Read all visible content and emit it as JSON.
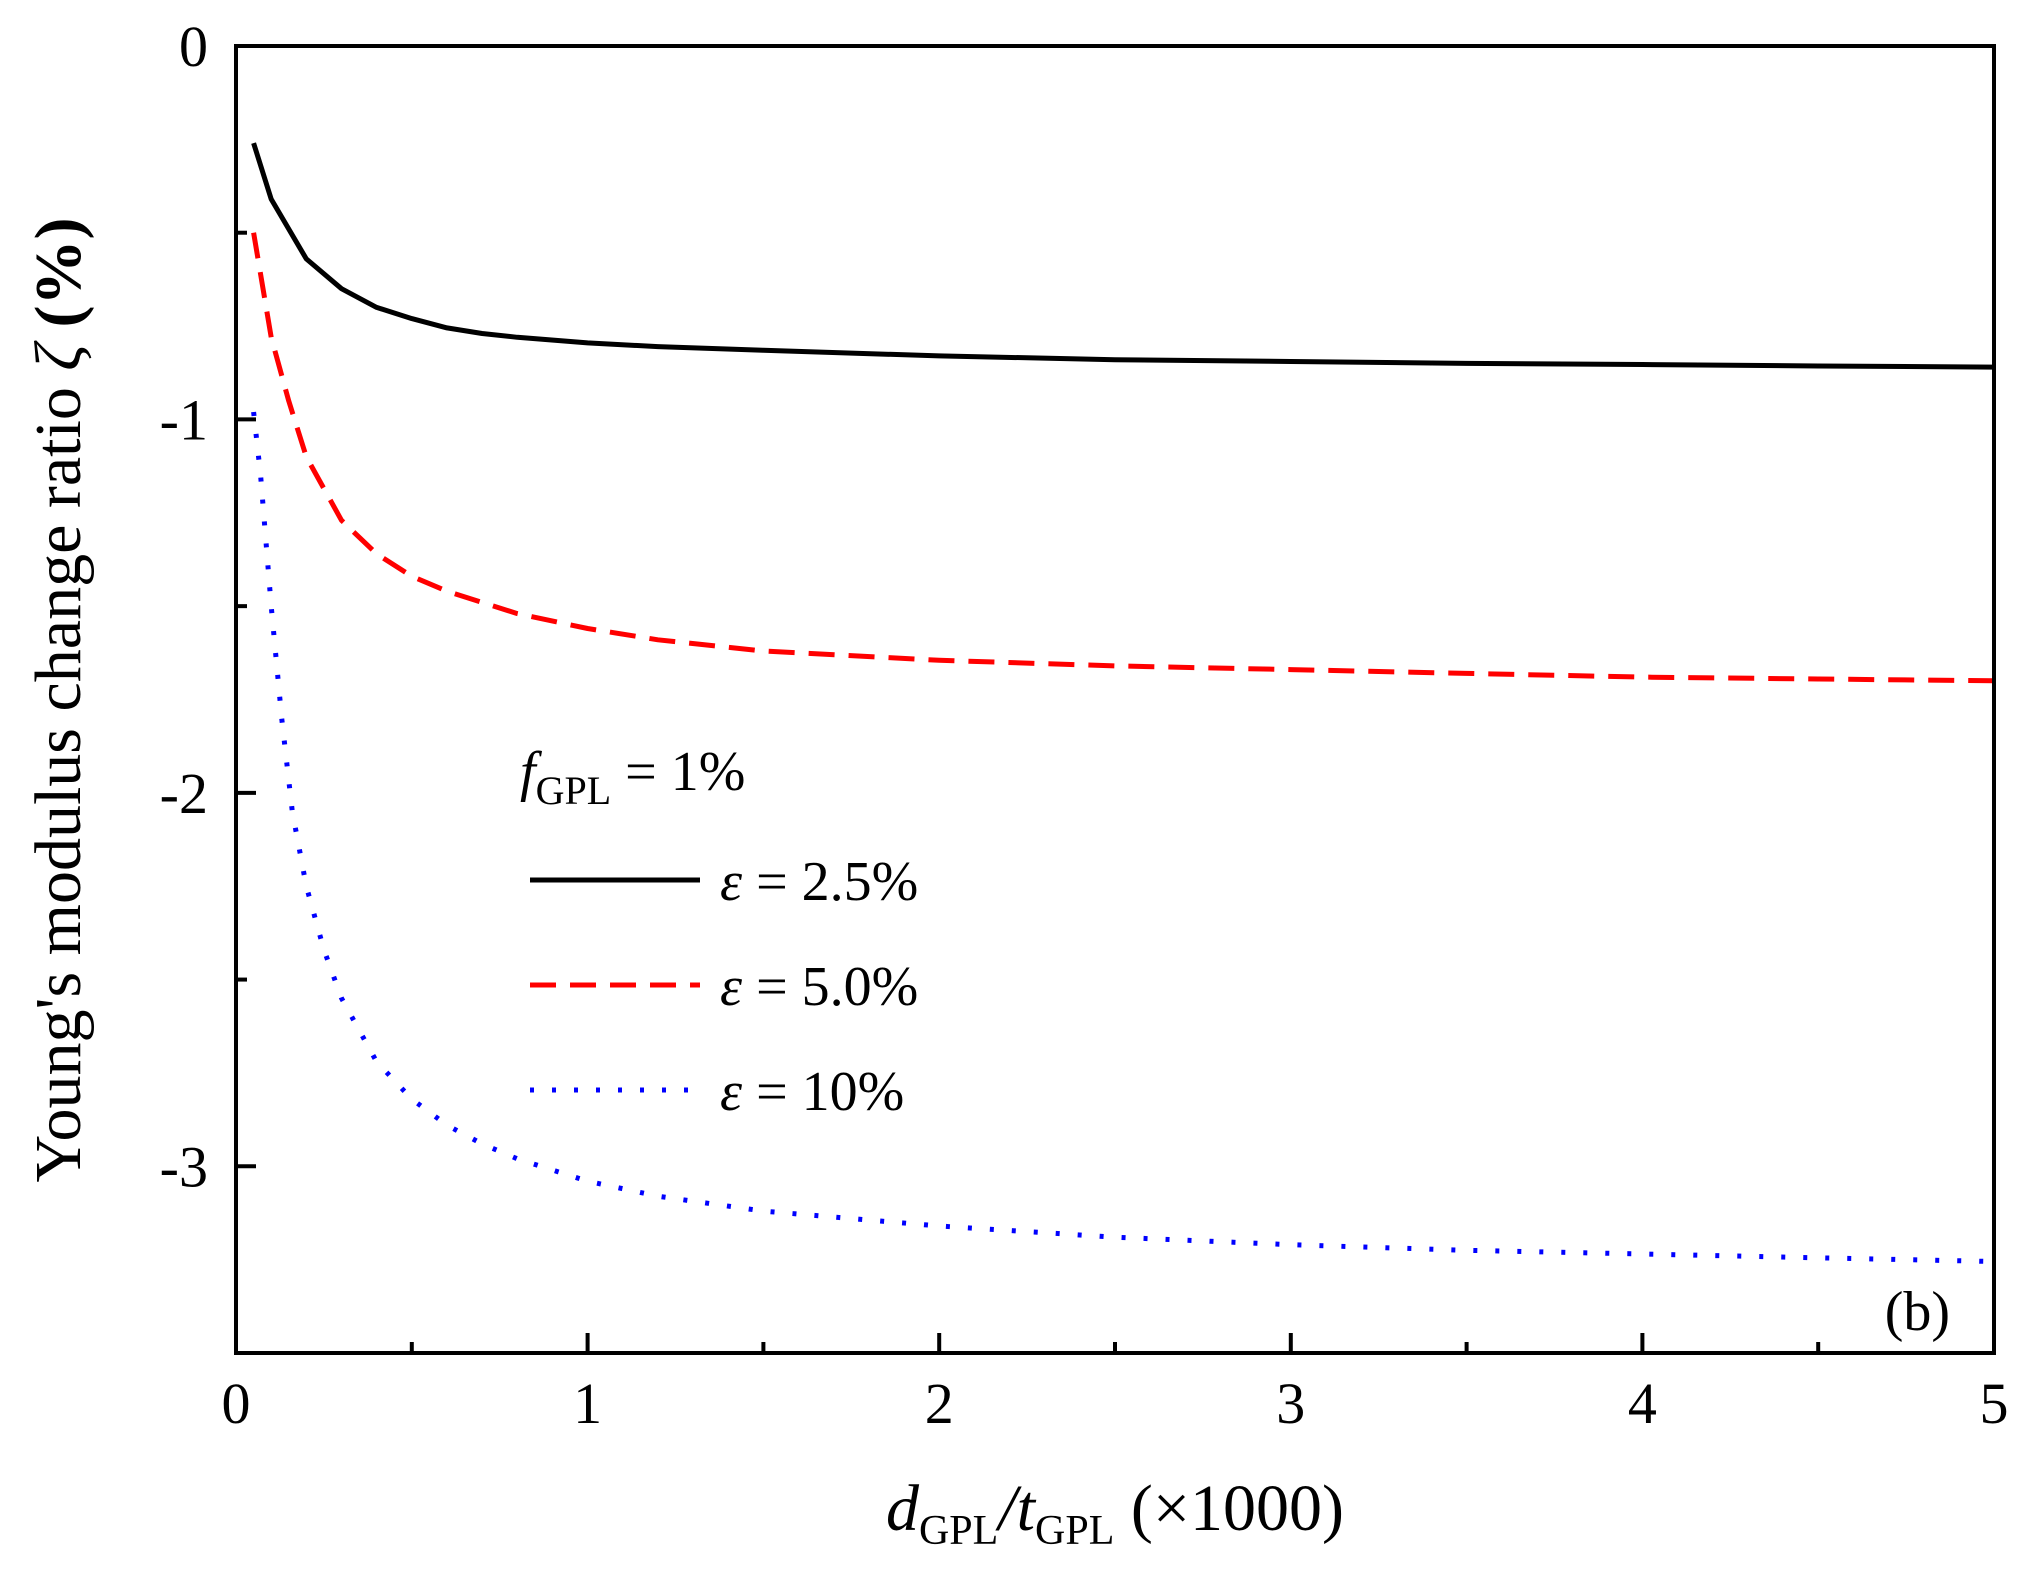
{
  "chart_data": {
    "type": "line",
    "title": "",
    "panel_label": "(b)",
    "xlabel": {
      "var1": "d",
      "sub1": "GPL",
      "slash": "/",
      "var2": "t",
      "sub2": "GPL",
      "suffix": "(×1000)"
    },
    "ylabel": {
      "prefix": "Young's modulus change ratio",
      "symbol": "ζ",
      "suffix": "(%)"
    },
    "xlim": [
      0,
      5
    ],
    "ylim": [
      -3.5,
      0
    ],
    "xticks": [
      {
        "value": 0,
        "label": "0"
      },
      {
        "value": 1,
        "label": "1"
      },
      {
        "value": 2,
        "label": "2"
      },
      {
        "value": 3,
        "label": "3"
      },
      {
        "value": 4,
        "label": "4"
      },
      {
        "value": 5,
        "label": "5"
      }
    ],
    "xminor": [
      0.5,
      1.5,
      2.5,
      3.5,
      4.5
    ],
    "yticks": [
      {
        "value": 0,
        "label": "0"
      },
      {
        "value": -1,
        "label": "-1"
      },
      {
        "value": -2,
        "label": "-2"
      },
      {
        "value": -3,
        "label": "-3"
      }
    ],
    "yminor": [
      -0.5,
      -1.5,
      -2.5
    ],
    "legend": {
      "placement": "center-left",
      "header": {
        "var": "f",
        "sub": "GPL",
        "rest": " = 1%"
      }
    },
    "series": [
      {
        "name": "ε = 2.5%",
        "symbol": "ε",
        "rest": " = 2.5%",
        "color": "#000000",
        "style": "solid",
        "x": [
          0.05,
          0.1,
          0.2,
          0.3,
          0.4,
          0.5,
          0.6,
          0.7,
          0.8,
          1.0,
          1.2,
          1.5,
          2.0,
          2.5,
          3.0,
          3.5,
          4.0,
          4.5,
          5.0
        ],
        "y": [
          -0.26,
          -0.41,
          -0.57,
          -0.65,
          -0.7,
          -0.73,
          -0.755,
          -0.77,
          -0.78,
          -0.795,
          -0.805,
          -0.815,
          -0.83,
          -0.84,
          -0.845,
          -0.85,
          -0.853,
          -0.857,
          -0.86
        ]
      },
      {
        "name": "ε = 5.0%",
        "symbol": "ε",
        "rest": " = 5.0%",
        "color": "#ff0000",
        "style": "dashed",
        "x": [
          0.05,
          0.1,
          0.15,
          0.2,
          0.3,
          0.4,
          0.5,
          0.6,
          0.7,
          0.8,
          1.0,
          1.2,
          1.5,
          2.0,
          2.5,
          3.0,
          3.5,
          4.0,
          4.5,
          5.0
        ],
        "y": [
          -0.5,
          -0.78,
          -0.95,
          -1.1,
          -1.27,
          -1.36,
          -1.42,
          -1.46,
          -1.49,
          -1.52,
          -1.56,
          -1.59,
          -1.62,
          -1.645,
          -1.66,
          -1.67,
          -1.68,
          -1.69,
          -1.695,
          -1.7
        ]
      },
      {
        "name": "ε = 10%",
        "symbol": "ε",
        "rest": " = 10%",
        "color": "#0000ff",
        "style": "dotted",
        "x": [
          0.05,
          0.07,
          0.1,
          0.13,
          0.16,
          0.2,
          0.25,
          0.3,
          0.4,
          0.5,
          0.6,
          0.7,
          0.8,
          1.0,
          1.2,
          1.5,
          2.0,
          2.5,
          3.0,
          3.5,
          4.0,
          4.5,
          5.0
        ],
        "y": [
          -0.98,
          -1.15,
          -1.5,
          -1.8,
          -2.05,
          -2.25,
          -2.42,
          -2.55,
          -2.72,
          -2.82,
          -2.89,
          -2.94,
          -2.98,
          -3.04,
          -3.08,
          -3.12,
          -3.16,
          -3.19,
          -3.21,
          -3.225,
          -3.235,
          -3.245,
          -3.255
        ]
      }
    ]
  }
}
